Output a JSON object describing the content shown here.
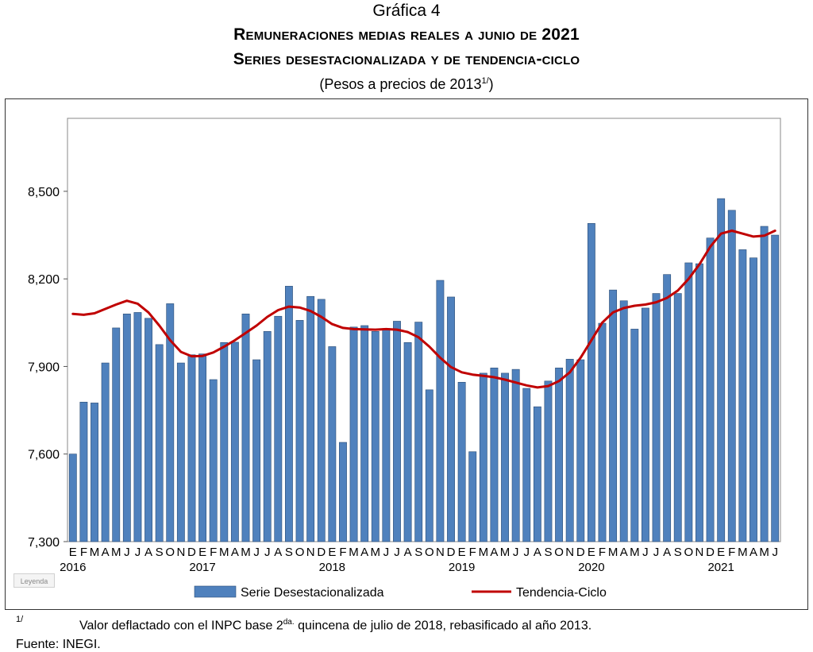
{
  "header": {
    "number": "Gráfica 4",
    "title_line1": "Remuneraciones medias reales a junio de 2021",
    "title_line2": "Series desestacionalizada y de tendencia-ciclo",
    "unit_text": "(Pesos a precios de 2013",
    "unit_sup": "1/",
    "unit_close": ")"
  },
  "legend_tag": "Leyenda",
  "footnote": {
    "mark": "1/",
    "text_before": "Valor deflactado con el INPC base 2",
    "text_sup": "da.",
    "text_after": " quincena de julio de 2018, rebasificado al año 2013."
  },
  "source": "Fuente: INEGI.",
  "colors": {
    "bar": "#4f81bd",
    "bar_edge": "#2c4d75",
    "trend": "#c00000"
  },
  "chart_data": {
    "type": "bar",
    "title": "Remuneraciones medias reales a junio de 2021",
    "ylim": [
      7300,
      8750
    ],
    "yticks": [
      "7,300",
      "7,600",
      "7,900",
      "8,200",
      "8,500"
    ],
    "ytick_values": [
      7300,
      7600,
      7900,
      8200,
      8500
    ],
    "grid": false,
    "legend_position": "bottom",
    "month_labels": [
      "E",
      "F",
      "M",
      "A",
      "M",
      "J",
      "J",
      "A",
      "S",
      "O",
      "N",
      "D",
      "E",
      "F",
      "M",
      "A",
      "M",
      "J",
      "J",
      "A",
      "S",
      "O",
      "N",
      "D",
      "E",
      "F",
      "M",
      "A",
      "M",
      "J",
      "J",
      "A",
      "S",
      "O",
      "N",
      "D",
      "E",
      "F",
      "M",
      "A",
      "M",
      "J",
      "J",
      "A",
      "S",
      "O",
      "N",
      "D",
      "E",
      "F",
      "M",
      "A",
      "M",
      "J",
      "J",
      "A",
      "S",
      "O",
      "N",
      "D",
      "E",
      "F",
      "M",
      "A",
      "M",
      "J"
    ],
    "years": [
      "2016",
      "2017",
      "2018",
      "2019",
      "2020",
      "2021"
    ],
    "series": [
      {
        "name": "Serie Desestacionalizada",
        "type": "bar",
        "values": [
          7600,
          7778,
          7775,
          7912,
          8032,
          8080,
          8085,
          8065,
          7975,
          8115,
          7912,
          7940,
          7943,
          7855,
          7982,
          7983,
          8080,
          7923,
          8020,
          8072,
          8175,
          8058,
          8140,
          8130,
          7968,
          7640,
          8035,
          8040,
          8020,
          8030,
          8055,
          7982,
          8052,
          7820,
          8195,
          8138,
          7846,
          7608,
          7877,
          7895,
          7877,
          7890,
          7825,
          7762,
          7850,
          7895,
          7925,
          7923,
          8390,
          8048,
          8162,
          8125,
          8028,
          8100,
          8150,
          8215,
          8150,
          8255,
          8252,
          8340,
          8475,
          8435,
          8300,
          8272,
          8380,
          8350
        ]
      },
      {
        "name": "Tendencia-Ciclo",
        "type": "line",
        "values": [
          8080,
          8077,
          8082,
          8097,
          8112,
          8125,
          8115,
          8085,
          8040,
          7990,
          7950,
          7935,
          7936,
          7948,
          7968,
          7990,
          8015,
          8040,
          8070,
          8093,
          8105,
          8102,
          8090,
          8070,
          8045,
          8032,
          8028,
          8027,
          8026,
          8028,
          8026,
          8018,
          8000,
          7968,
          7930,
          7898,
          7880,
          7872,
          7868,
          7863,
          7855,
          7845,
          7835,
          7828,
          7833,
          7850,
          7880,
          7930,
          7990,
          8050,
          8085,
          8100,
          8108,
          8112,
          8120,
          8135,
          8160,
          8200,
          8250,
          8310,
          8355,
          8365,
          8355,
          8345,
          8348,
          8365
        ]
      }
    ]
  }
}
